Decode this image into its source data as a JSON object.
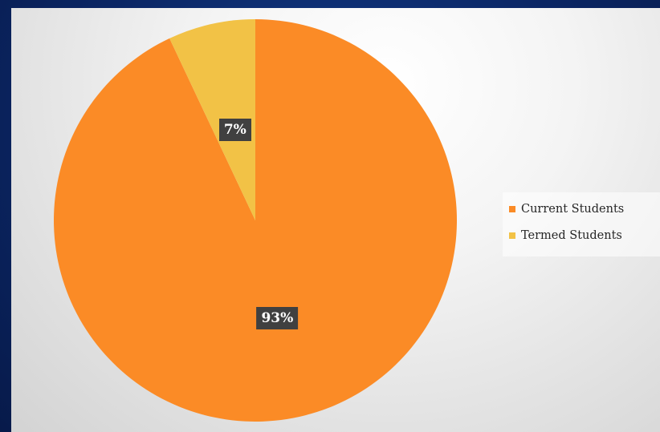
{
  "chart_data": {
    "type": "pie",
    "title": "",
    "categories": [
      "Current Students",
      "Termed Students"
    ],
    "values": [
      93,
      7
    ],
    "unit": "%",
    "colors": [
      "#fb8b26",
      "#f2c246"
    ],
    "data_labels": [
      "93%",
      "7%"
    ],
    "legend": {
      "position": "right",
      "entries": [
        "Current Students",
        "Termed Students"
      ]
    },
    "start_angle_deg": 0,
    "direction": "clockwise"
  },
  "colors": {
    "background": "#0b2664",
    "label_box": "#404040",
    "label_text": "#ffffff"
  }
}
